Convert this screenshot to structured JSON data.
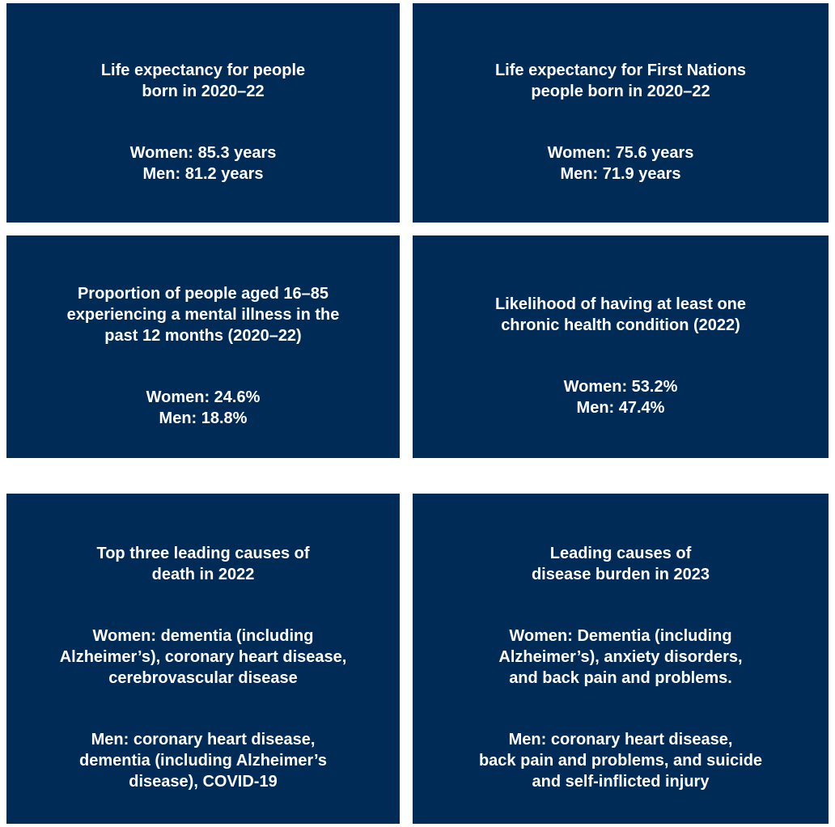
{
  "cards": [
    {
      "title": [
        "Life expectancy for people",
        "born in 2020–22"
      ],
      "body": [
        [
          "Women: 85.3 years",
          "Men: 81.2 years"
        ]
      ]
    },
    {
      "title": [
        "Life expectancy for First Nations",
        "people born in 2020–22"
      ],
      "body": [
        [
          "Women: 75.6 years",
          "Men: 71.9 years"
        ]
      ]
    },
    {
      "title": [
        "Proportion of people aged 16–85",
        "experiencing a mental illness in the",
        "past 12 months (2020–22)"
      ],
      "body": [
        [
          "Women: 24.6%",
          "Men: 18.8%"
        ]
      ]
    },
    {
      "title": [
        "Likelihood of having at least one",
        "chronic health condition (2022)"
      ],
      "body": [
        [
          "Women: 53.2%",
          "Men: 47.4%"
        ]
      ]
    },
    {
      "title": [
        "Top three leading causes of",
        "death in 2022"
      ],
      "body": [
        [
          "Women: dementia (including",
          "Alzheimer’s), coronary heart disease,",
          "cerebrovascular disease"
        ],
        [
          "Men: coronary heart disease,",
          "dementia (including Alzheimer’s",
          "disease), COVID-19"
        ]
      ]
    },
    {
      "title": [
        "Leading causes of",
        "disease burden in 2023"
      ],
      "body": [
        [
          "Women: Dementia (including",
          "Alzheimer’s), anxiety disorders,",
          "and back pain and problems."
        ],
        [
          "Men: coronary heart disease,",
          "back pain and problems, and suicide",
          "and self-inflicted injury"
        ]
      ]
    }
  ]
}
